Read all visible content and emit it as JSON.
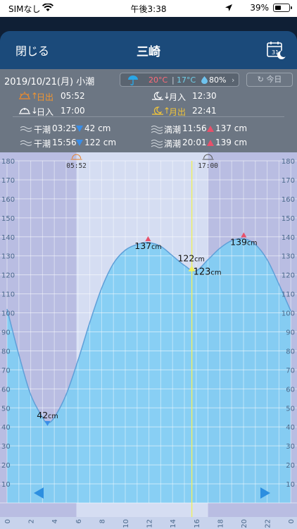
{
  "status_bar": {
    "carrier": "SIMなし",
    "time": "午後3:38",
    "battery": "39%"
  },
  "nav": {
    "close_label": "閉じる",
    "title": "三崎"
  },
  "info": {
    "date": "2019/10/21(月) 小潮",
    "weather": {
      "high": "20°C",
      "low": "17°C",
      "humidity": "80%"
    },
    "today_label": "今日",
    "sunrise_label": "日出",
    "sunrise_time": "05:52",
    "sunset_label": "日入",
    "sunset_time": "17:00",
    "moonset_label": "月入",
    "moonset_time": "12:30",
    "moonrise_label": "月出",
    "moonrise_time": "22:41",
    "tides": [
      {
        "type": "干潮",
        "time": "03:25",
        "level": "42 cm"
      },
      {
        "type": "干潮",
        "time": "15:56",
        "level": "122 cm"
      },
      {
        "type": "満潮",
        "time": "11:56",
        "level": "137 cm"
      },
      {
        "type": "満潮",
        "time": "20:01",
        "level": "139 cm"
      }
    ]
  },
  "chart_data": {
    "type": "area",
    "x": [
      0,
      1,
      2,
      3,
      3.42,
      4,
      5,
      6,
      7,
      8,
      9,
      10,
      11,
      11.93,
      13,
      14,
      15,
      15.93,
      17,
      18,
      19,
      20.02,
      21,
      22,
      23,
      24
    ],
    "y": [
      102,
      78,
      57,
      45,
      42,
      45,
      57,
      75,
      95,
      113,
      126,
      133,
      136,
      137,
      135,
      130,
      125,
      122,
      128,
      134,
      138,
      139,
      136,
      128,
      115,
      101
    ],
    "xlim": [
      0,
      24
    ],
    "ylim": [
      0,
      180
    ],
    "xticks": [
      "0",
      "2",
      "4",
      "6",
      "8",
      "10",
      "12",
      "14",
      "16",
      "18",
      "20",
      "22",
      "0"
    ],
    "yticks": [
      "0",
      "10",
      "20",
      "30",
      "40",
      "50",
      "60",
      "70",
      "80",
      "90",
      "100",
      "110",
      "120",
      "130",
      "140",
      "150",
      "160",
      "170",
      "180"
    ],
    "sunrise": 5.87,
    "sunset": 17.0,
    "sunrise_label": "05:52",
    "sunset_label": "17:00",
    "current_time": 15.63,
    "current_label": "123",
    "annotations": [
      {
        "x": 3.42,
        "y": 42,
        "value": "42",
        "unit": "cm",
        "kind": "low"
      },
      {
        "x": 11.93,
        "y": 137,
        "value": "137",
        "unit": "cm",
        "kind": "high"
      },
      {
        "x": 15.93,
        "y": 122,
        "value": "122",
        "unit": "cm",
        "kind": "low"
      },
      {
        "x": 20.02,
        "y": 139,
        "value": "139",
        "unit": "cm",
        "kind": "high"
      }
    ],
    "grid": true,
    "colors": {
      "fill": "#7fcdf4",
      "stroke": "#5f9fd8",
      "night": "#b9bde2",
      "day": "#d5ddf2",
      "now": "#f0f060",
      "high": "#e8506a",
      "low": "#3a8ee8",
      "arrow": "#2d8fe0"
    }
  }
}
